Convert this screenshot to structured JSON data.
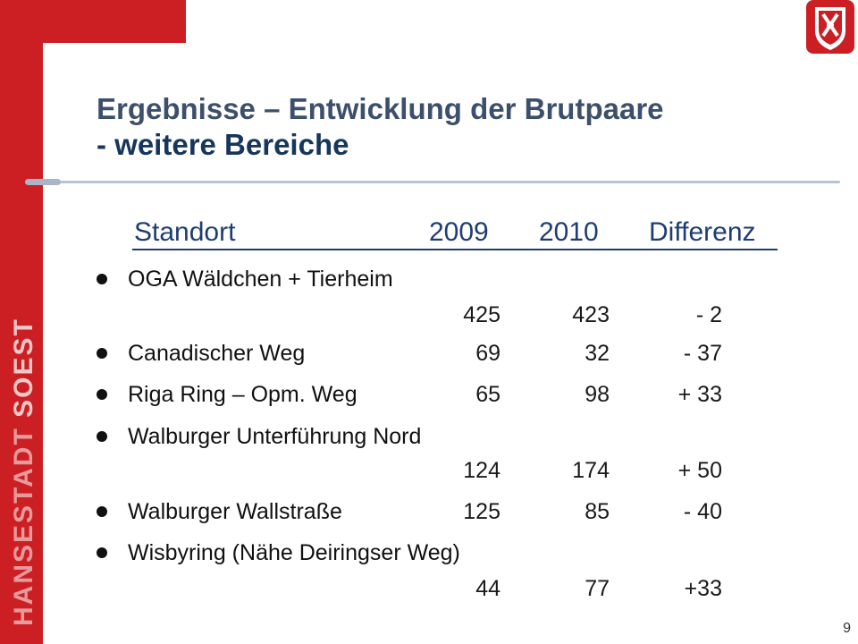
{
  "brand": {
    "vertical_text_part1": "HANSESTADT",
    "vertical_text_part2": "SOEST"
  },
  "title": {
    "line1": "Ergebnisse – Entwicklung der Brutpaare",
    "line2": "- weitere Bereiche"
  },
  "table": {
    "headers": {
      "site": "Standort",
      "y2009": "2009",
      "y2010": "2010",
      "diff": "Differenz"
    },
    "rows": [
      {
        "site": "OGA Wäldchen  + Tierheim",
        "y2009": "425",
        "y2010": "423",
        "diff": "- 2"
      },
      {
        "site": "Canadischer Weg",
        "y2009": "69",
        "y2010": "32",
        "diff": "- 37"
      },
      {
        "site": "Riga Ring – Opm. Weg",
        "y2009": "65",
        "y2010": "98",
        "diff": "+ 33"
      },
      {
        "site": "Walburger Unterführung Nord",
        "y2009": "124",
        "y2010": "174",
        "diff": "+ 50"
      },
      {
        "site": "Walburger Wallstraße",
        "y2009": "125",
        "y2010": "85",
        "diff": "- 40"
      },
      {
        "site": "Wisbyring (Nähe Deiringser Weg)",
        "y2009": "44",
        "y2010": "77",
        "diff": "+33"
      }
    ]
  },
  "page_number": "9",
  "colors": {
    "accent_red": "#cc1f24",
    "title_blue": "#1f3d73"
  }
}
